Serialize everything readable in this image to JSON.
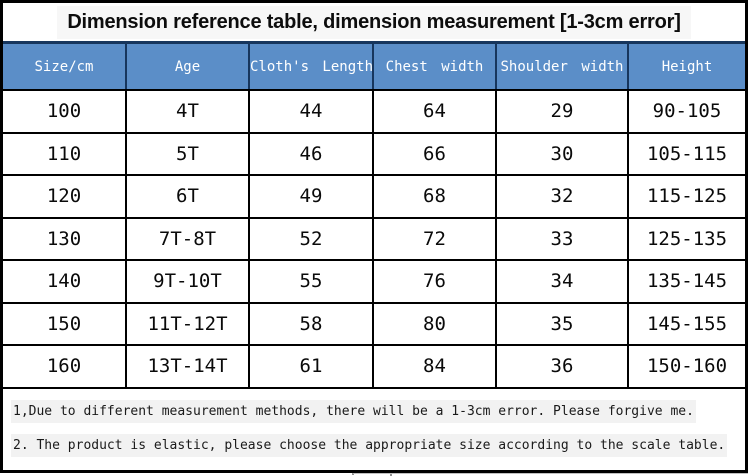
{
  "title": "Dimension reference table, dimension measurement [1-3cm error]",
  "table": {
    "columns": [
      "Size/cm",
      "Age",
      "Cloth's Length",
      "Chest width",
      "Shoulder width",
      "Height"
    ],
    "rows": [
      [
        "100",
        "4T",
        "44",
        "64",
        "29",
        "90-105"
      ],
      [
        "110",
        "5T",
        "46",
        "66",
        "30",
        "105-115"
      ],
      [
        "120",
        "6T",
        "49",
        "68",
        "32",
        "115-125"
      ],
      [
        "130",
        "7T-8T",
        "52",
        "72",
        "33",
        "125-135"
      ],
      [
        "140",
        "9T-10T",
        "55",
        "76",
        "34",
        "135-145"
      ],
      [
        "150",
        "11T-12T",
        "58",
        "80",
        "35",
        "145-155"
      ],
      [
        "160",
        "13T-14T",
        "61",
        "84",
        "36",
        "150-160"
      ]
    ]
  },
  "notes": [
    "1,Due to different measurement methods, there will be a 1-3cm error. Please forgive me.",
    "2. The product is elastic, please choose the appropriate size according to the scale table."
  ],
  "colors": {
    "header_bg": "#5b8ec8",
    "header_text": "#ffffff",
    "header_border": "#17365d",
    "body_border": "#000000",
    "note_highlight": "#f2f2f2"
  }
}
